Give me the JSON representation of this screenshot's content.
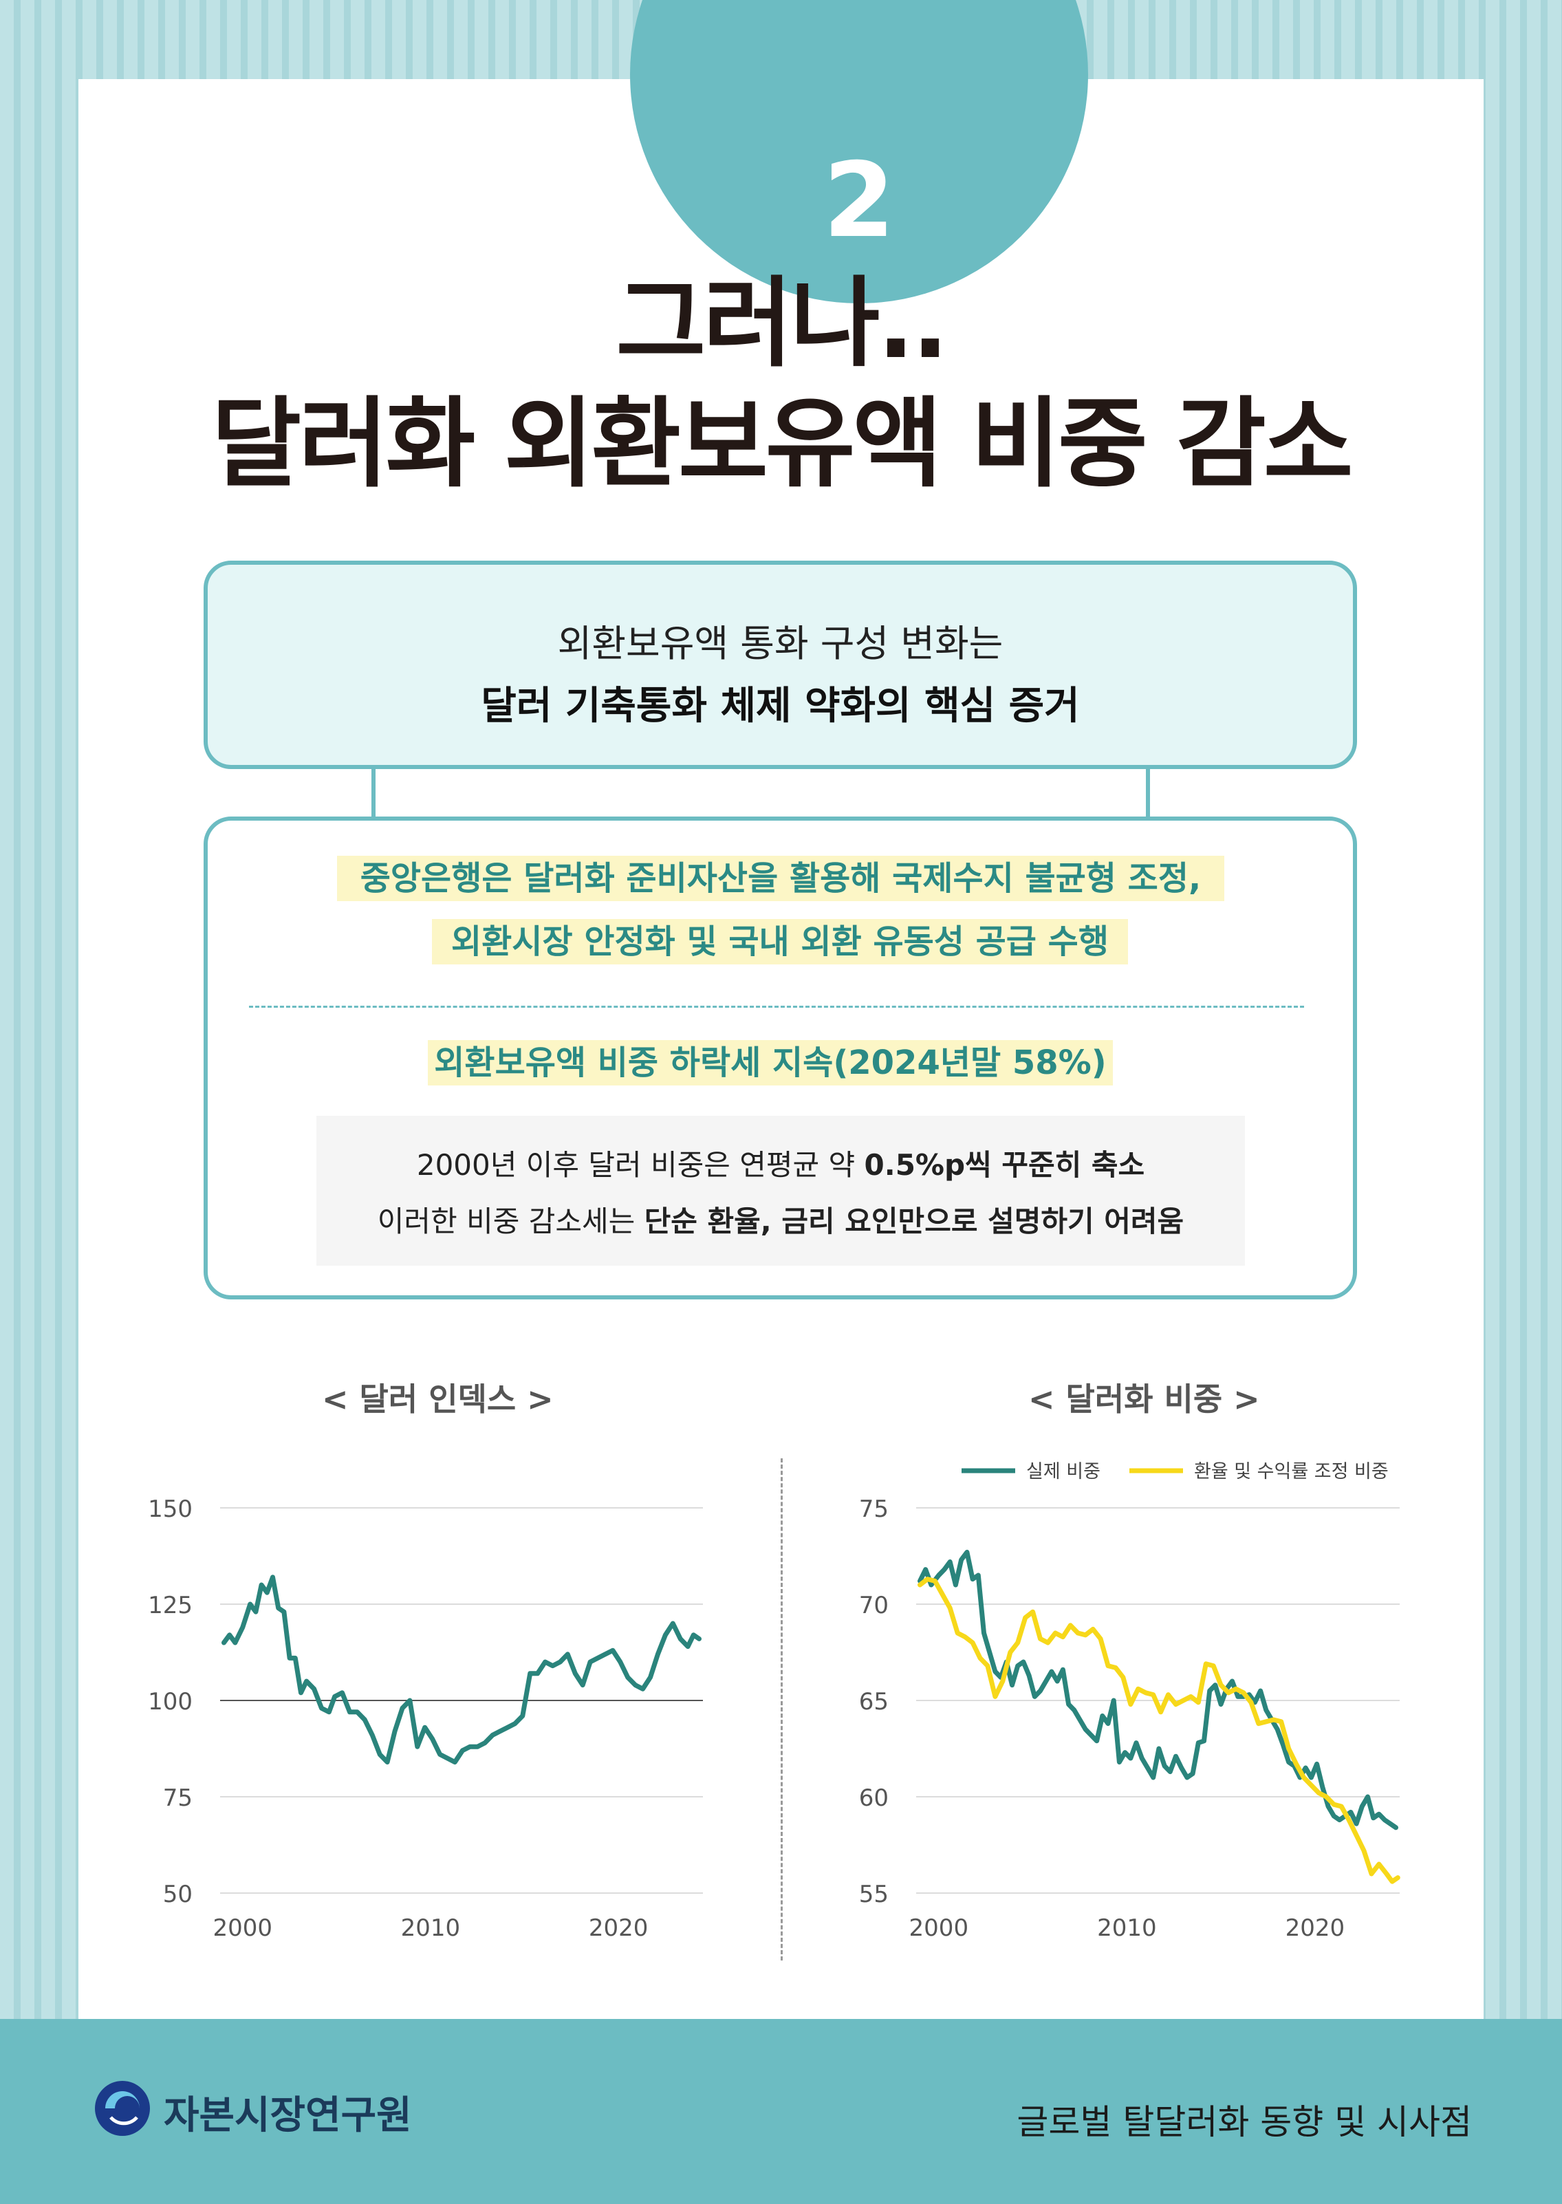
{
  "badge": {
    "number": "2"
  },
  "title": {
    "line1": "그러나..",
    "line2": "달러화 외환보유액 비중 감소"
  },
  "box1": {
    "line1": "외환보유액 통화 구성 변화는",
    "line2": "달러 기축통화 체제 약화의 핵심 증거"
  },
  "box2": {
    "highlight1": "중앙은행은 달러화 준비자산을 활용해 국제수지 불균형 조정,",
    "highlight2": "외환시장 안정화 및 국내 외환 유동성 공급 수행",
    "highlight3": "외환보유액 비중 하락세 지속(2024년말 58%)",
    "note1_prefix": "2000년 이후 달러 비중은 연평균 약 ",
    "note1_bold": "0.5%p씩 꾸준히 축소",
    "note2_prefix": "이러한 비중 감소세는 ",
    "note2_bold": "단순 환율, 금리 요인만으로 설명하기 어려움"
  },
  "footer": {
    "org": "자본시장연구원",
    "series": "글로벌 탈달러화 동향 및 시사점"
  },
  "colors": {
    "teal": "#6cbcc2",
    "series_teal": "#2a847c",
    "series_yellow": "#f7d81a",
    "highlight_bg": "#fcf6c6"
  },
  "chart_data": [
    {
      "type": "line",
      "title": "< 달러 인덱스 >",
      "xticks": [
        2000,
        2010,
        2020
      ],
      "yticks": [
        50,
        75,
        100,
        125,
        150
      ],
      "ylim": [
        50,
        150
      ],
      "xlim": [
        1998.8,
        2024.5
      ],
      "reference_line": 100,
      "series": [
        {
          "color": "#2a847c",
          "x": [
            1999.0,
            1999.3,
            1999.6,
            2000.0,
            2000.4,
            2000.7,
            2001.0,
            2001.3,
            2001.6,
            2001.9,
            2002.2,
            2002.5,
            2002.8,
            2003.1,
            2003.4,
            2003.8,
            2004.2,
            2004.6,
            2004.9,
            2005.3,
            2005.7,
            2006.1,
            2006.5,
            2006.9,
            2007.3,
            2007.7,
            2008.1,
            2008.5,
            2008.9,
            2009.3,
            2009.7,
            2010.1,
            2010.5,
            2010.9,
            2011.3,
            2011.7,
            2012.1,
            2012.5,
            2012.9,
            2013.3,
            2013.7,
            2014.1,
            2014.5,
            2014.9,
            2015.3,
            2015.7,
            2016.1,
            2016.5,
            2016.9,
            2017.3,
            2017.7,
            2018.1,
            2018.5,
            2018.9,
            2019.3,
            2019.7,
            2020.1,
            2020.5,
            2020.9,
            2021.3,
            2021.7,
            2022.1,
            2022.5,
            2022.9,
            2023.3,
            2023.7,
            2024.0,
            2024.3
          ],
          "y": [
            115,
            117,
            115,
            119,
            125,
            123,
            130,
            128,
            132,
            124,
            123,
            111,
            111,
            102,
            105,
            103,
            98,
            97,
            101,
            102,
            97,
            97,
            95,
            91,
            86,
            84,
            92,
            98,
            100,
            88,
            93,
            90,
            86,
            85,
            84,
            87,
            88,
            88,
            89,
            91,
            92,
            93,
            94,
            96,
            107,
            107,
            110,
            109,
            110,
            112,
            107,
            104,
            110,
            111,
            112,
            113,
            110,
            106,
            104,
            103,
            106,
            112,
            117,
            120,
            116,
            114,
            117,
            116
          ]
        }
      ]
    },
    {
      "type": "line",
      "title": "< 달러화 비중 >",
      "xticks": [
        2000,
        2010,
        2020
      ],
      "yticks": [
        55,
        60,
        65,
        70,
        75
      ],
      "ylim": [
        55,
        75
      ],
      "xlim": [
        1998.8,
        2024.5
      ],
      "legend_position": "top-right",
      "series": [
        {
          "name": "실제 비중",
          "color": "#2a847c",
          "x": [
            1999.0,
            1999.3,
            1999.6,
            2000.0,
            2000.3,
            2000.6,
            2000.9,
            2001.2,
            2001.5,
            2001.8,
            2002.1,
            2002.4,
            2002.7,
            2003.0,
            2003.3,
            2003.6,
            2003.9,
            2004.2,
            2004.5,
            2004.8,
            2005.1,
            2005.4,
            2005.7,
            2006.0,
            2006.3,
            2006.6,
            2006.9,
            2007.2,
            2007.5,
            2007.8,
            2008.1,
            2008.4,
            2008.7,
            2009.0,
            2009.3,
            2009.6,
            2009.9,
            2010.2,
            2010.5,
            2010.8,
            2011.1,
            2011.4,
            2011.7,
            2012.0,
            2012.3,
            2012.6,
            2012.9,
            2013.2,
            2013.5,
            2013.8,
            2014.1,
            2014.4,
            2014.7,
            2015.0,
            2015.3,
            2015.6,
            2015.9,
            2016.2,
            2016.5,
            2016.8,
            2017.1,
            2017.4,
            2017.7,
            2018.0,
            2018.3,
            2018.6,
            2018.9,
            2019.2,
            2019.5,
            2019.8,
            2020.1,
            2020.4,
            2020.7,
            2021.0,
            2021.3,
            2021.6,
            2021.9,
            2022.2,
            2022.5,
            2022.8,
            2023.1,
            2023.4,
            2023.7,
            2024.0,
            2024.3
          ],
          "y": [
            71.2,
            71.8,
            71.0,
            71.5,
            71.8,
            72.2,
            71.0,
            72.3,
            72.7,
            71.3,
            71.5,
            68.5,
            67.5,
            66.5,
            66.2,
            67.0,
            65.8,
            66.8,
            67.0,
            66.3,
            65.2,
            65.5,
            66.0,
            66.5,
            66.0,
            66.6,
            64.8,
            64.5,
            64.0,
            63.5,
            63.2,
            62.9,
            64.2,
            63.8,
            65.0,
            61.8,
            62.3,
            62.0,
            62.8,
            62.0,
            61.5,
            61.0,
            62.5,
            61.6,
            61.3,
            62.1,
            61.5,
            61.0,
            61.2,
            62.8,
            62.9,
            65.5,
            65.8,
            64.8,
            65.6,
            66.0,
            65.2,
            65.2,
            65.3,
            64.9,
            65.5,
            64.5,
            64.0,
            63.5,
            62.7,
            61.8,
            61.6,
            61.0,
            61.5,
            61.0,
            61.7,
            60.5,
            59.5,
            59.0,
            58.8,
            59.0,
            59.2,
            58.6,
            59.5,
            60.0,
            58.9,
            59.1,
            58.8,
            58.6,
            58.4
          ]
        },
        {
          "name": "환율 및 수익률 조정 비중",
          "color": "#f7d81a",
          "x": [
            1999.0,
            1999.4,
            1999.8,
            2000.2,
            2000.6,
            2001.0,
            2001.4,
            2001.8,
            2002.2,
            2002.6,
            2003.0,
            2003.4,
            2003.8,
            2004.2,
            2004.6,
            2005.0,
            2005.4,
            2005.8,
            2006.2,
            2006.6,
            2007.0,
            2007.4,
            2007.8,
            2008.2,
            2008.6,
            2009.0,
            2009.4,
            2009.8,
            2010.2,
            2010.6,
            2011.0,
            2011.4,
            2011.8,
            2012.2,
            2012.6,
            2013.0,
            2013.4,
            2013.8,
            2014.2,
            2014.6,
            2015.0,
            2015.4,
            2015.8,
            2016.2,
            2016.6,
            2017.0,
            2017.4,
            2017.8,
            2018.2,
            2018.6,
            2019.0,
            2019.4,
            2019.8,
            2020.2,
            2020.6,
            2021.0,
            2021.4,
            2021.8,
            2022.2,
            2022.6,
            2023.0,
            2023.4,
            2023.8,
            2024.1,
            2024.4
          ],
          "y": [
            71.0,
            71.3,
            71.2,
            70.5,
            69.8,
            68.5,
            68.3,
            68.0,
            67.2,
            66.8,
            65.2,
            66.0,
            67.5,
            68.0,
            69.3,
            69.6,
            68.2,
            68.0,
            68.5,
            68.3,
            68.9,
            68.5,
            68.4,
            68.7,
            68.2,
            66.8,
            66.7,
            66.2,
            64.8,
            65.6,
            65.4,
            65.3,
            64.4,
            65.3,
            64.8,
            65.0,
            65.2,
            64.9,
            66.9,
            66.8,
            65.8,
            65.4,
            65.6,
            65.4,
            64.9,
            63.8,
            63.9,
            64.0,
            63.9,
            62.5,
            61.7,
            61.0,
            60.6,
            60.2,
            60.0,
            59.6,
            59.5,
            58.8,
            58.0,
            57.2,
            56.0,
            56.5,
            56.0,
            55.6,
            55.8
          ]
        }
      ]
    }
  ]
}
